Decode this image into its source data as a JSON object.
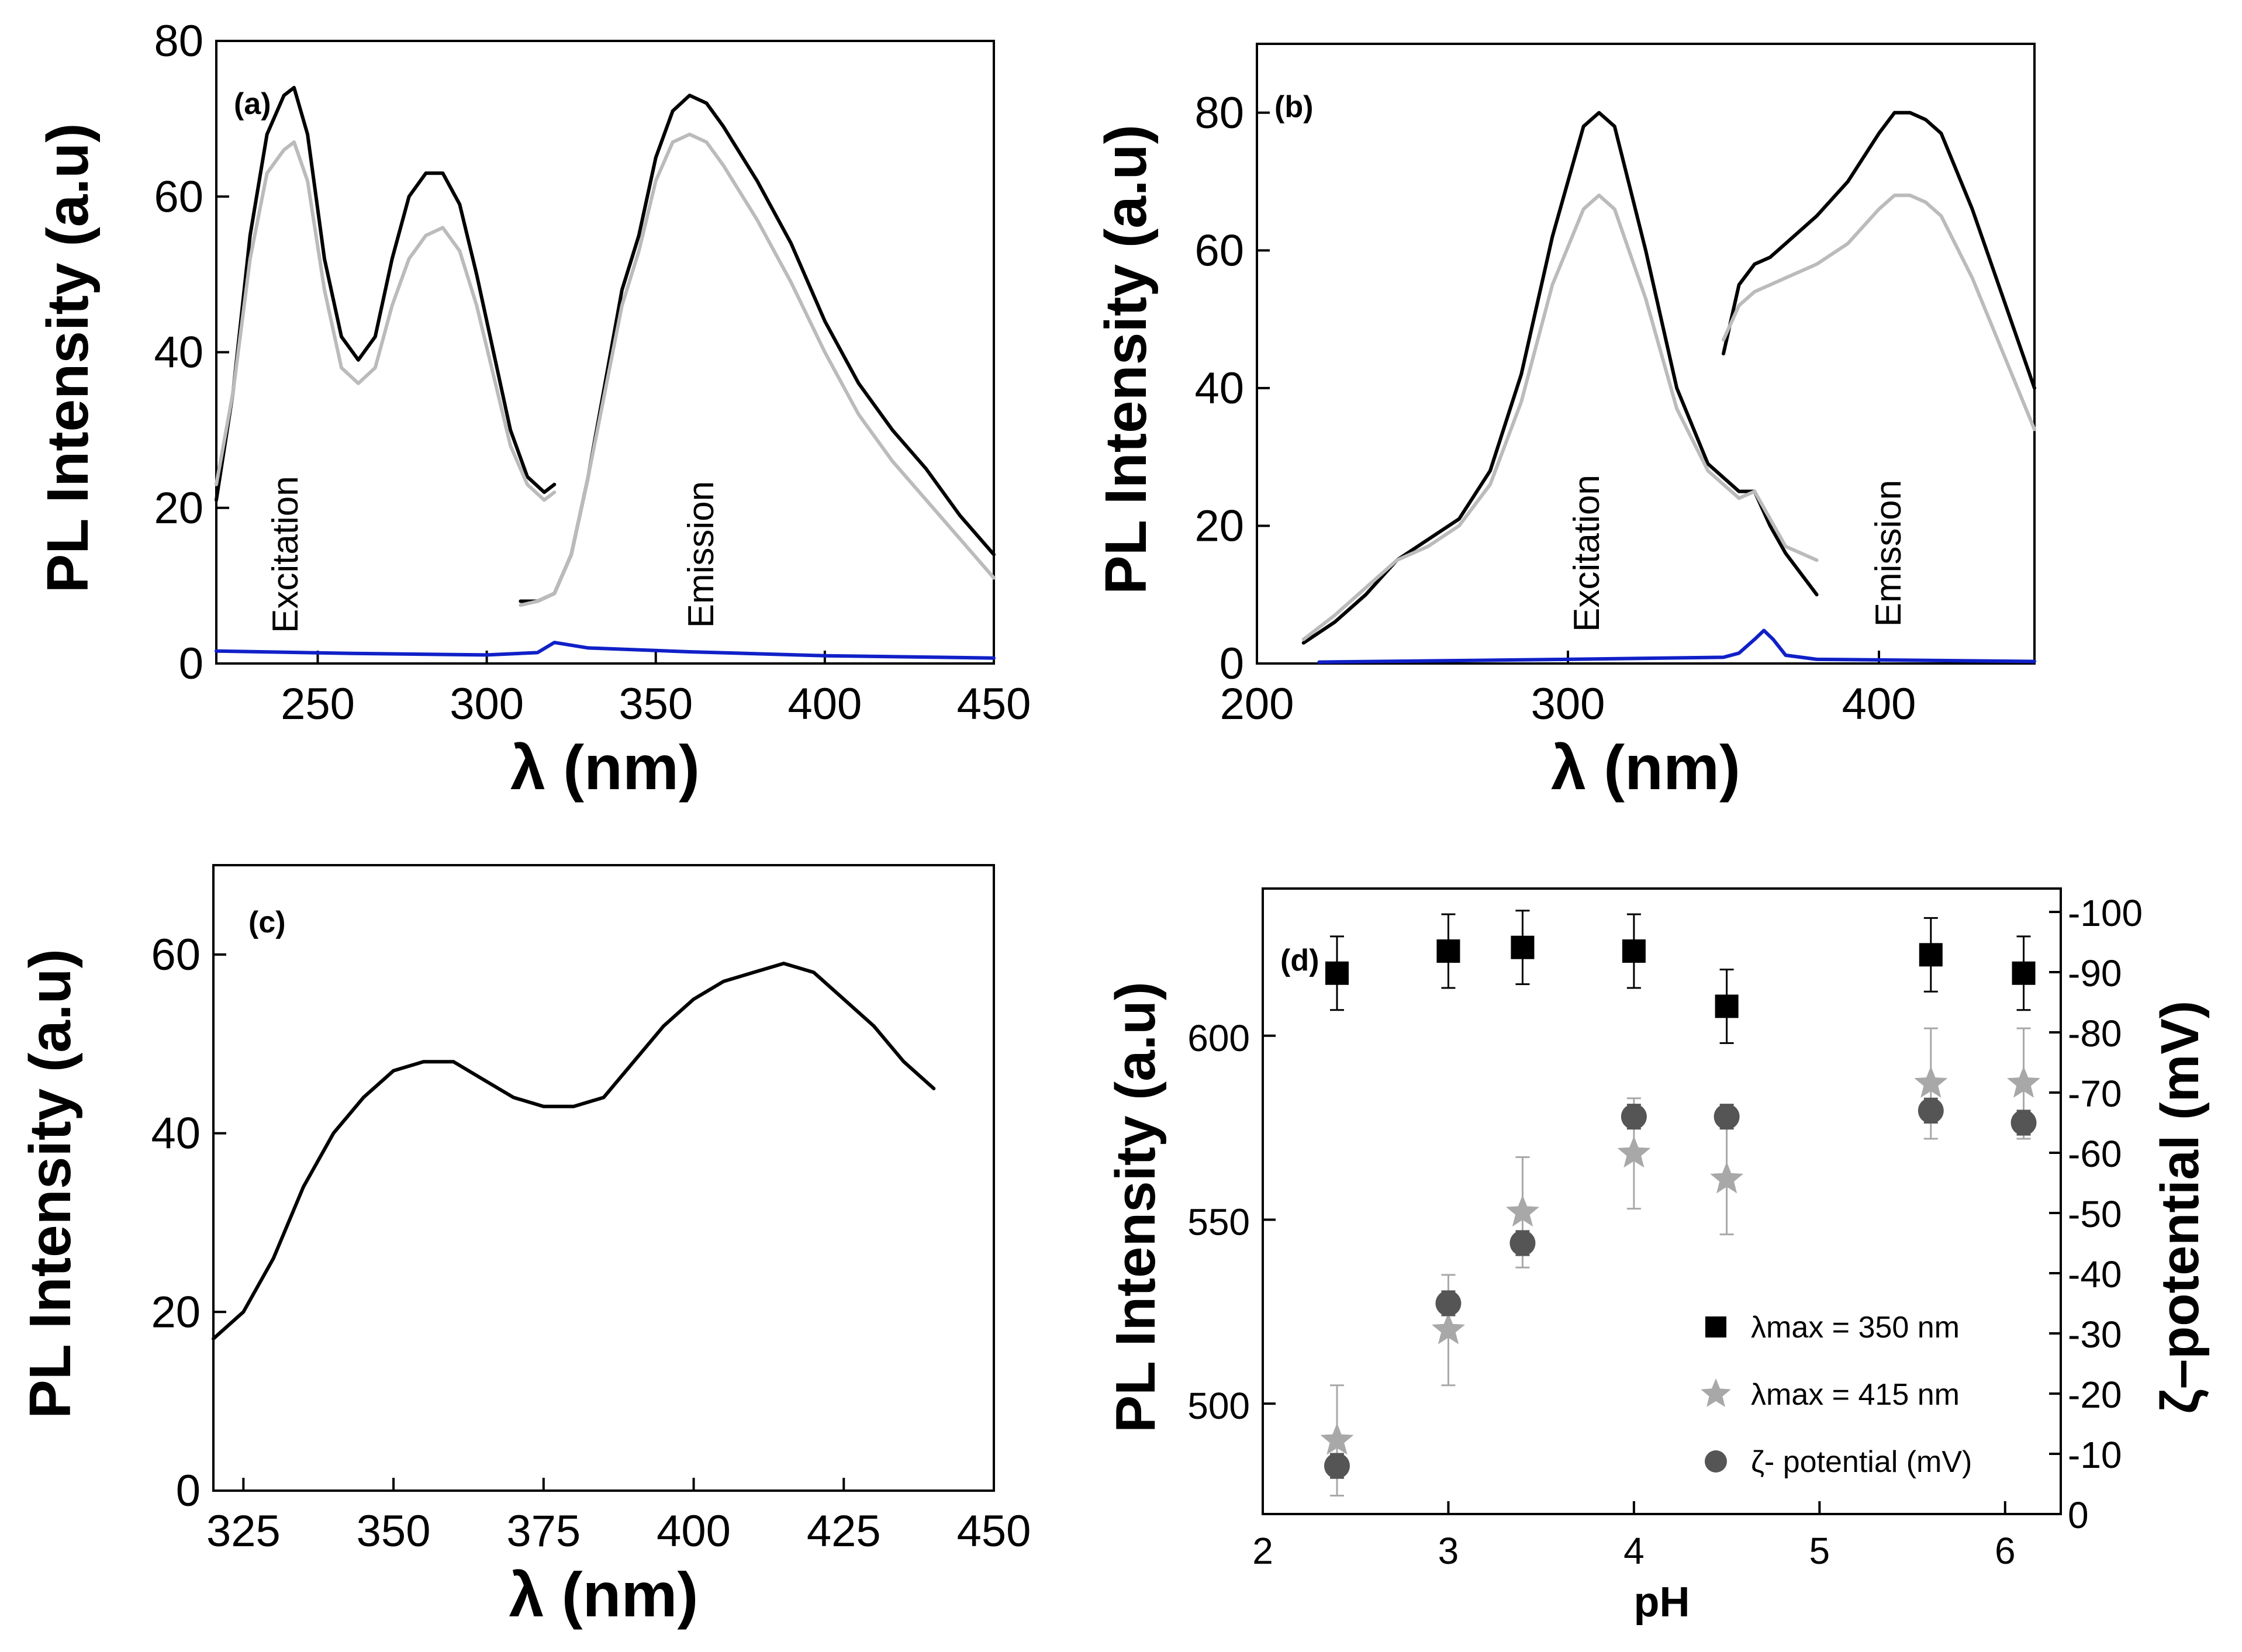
{
  "chart_data": [
    {
      "panel": "a",
      "type": "line",
      "label": "(a)",
      "xlabel": "λ (nm)",
      "ylabel": "PL Intensity (a.u)",
      "xlim": [
        220,
        450
      ],
      "ylim": [
        0,
        80
      ],
      "xticks": [
        250,
        300,
        350,
        400,
        450
      ],
      "yticks": [
        0,
        20,
        40,
        60,
        80
      ],
      "annotations": [
        "Excitation",
        "Emission"
      ],
      "series": [
        {
          "name": "excitation-black",
          "color": "#000000",
          "x": [
            220,
            225,
            230,
            235,
            240,
            243,
            247,
            252,
            257,
            262,
            267,
            272,
            277,
            282,
            287,
            292,
            297,
            302,
            307,
            312,
            317,
            320
          ],
          "y": [
            21,
            35,
            55,
            68,
            73,
            74,
            68,
            52,
            42,
            39,
            42,
            52,
            60,
            63,
            63,
            59,
            50,
            40,
            30,
            24,
            22,
            23
          ]
        },
        {
          "name": "excitation-gray",
          "color": "#bbbbbb",
          "x": [
            220,
            225,
            230,
            235,
            240,
            243,
            247,
            252,
            257,
            262,
            267,
            272,
            277,
            282,
            287,
            292,
            297,
            302,
            307,
            312,
            317,
            320
          ],
          "y": [
            23,
            35,
            52,
            63,
            66,
            67,
            62,
            48,
            38,
            36,
            38,
            46,
            52,
            55,
            56,
            53,
            46,
            37,
            28,
            23,
            21,
            22
          ]
        },
        {
          "name": "emission-black",
          "color": "#000000",
          "x": [
            310,
            315,
            320,
            325,
            330,
            335,
            340,
            345,
            350,
            355,
            360,
            365,
            370,
            380,
            390,
            400,
            410,
            420,
            430,
            440,
            450
          ],
          "y": [
            8,
            8,
            9,
            14,
            24,
            36,
            48,
            55,
            65,
            71,
            73,
            72,
            69,
            62,
            54,
            44,
            36,
            30,
            25,
            19,
            14
          ]
        },
        {
          "name": "emission-gray",
          "color": "#bbbbbb",
          "x": [
            310,
            315,
            320,
            325,
            330,
            335,
            340,
            345,
            350,
            355,
            360,
            365,
            370,
            380,
            390,
            400,
            410,
            420,
            430,
            440,
            450
          ],
          "y": [
            7.5,
            8,
            9,
            14,
            24,
            35,
            46,
            53,
            62,
            67,
            68,
            67,
            64,
            57,
            49,
            40,
            32,
            26,
            21,
            16,
            11
          ]
        },
        {
          "name": "baseline-blue",
          "color": "#1020c8",
          "x": [
            220,
            260,
            300,
            315,
            320,
            330,
            360,
            400,
            450
          ],
          "y": [
            1.6,
            1.3,
            1.1,
            1.4,
            2.7,
            2.0,
            1.5,
            1.0,
            0.7
          ]
        }
      ]
    },
    {
      "panel": "b",
      "type": "line",
      "label": "(b)",
      "xlabel": "λ (nm)",
      "ylabel": "PL Intensity (a.u)",
      "xlim": [
        200,
        450
      ],
      "ylim": [
        0,
        90
      ],
      "xticks": [
        200,
        300,
        400
      ],
      "yticks": [
        0,
        20,
        40,
        60,
        80
      ],
      "annotations": [
        "Excitation",
        "Emission"
      ],
      "series": [
        {
          "name": "excitation-black",
          "color": "#000000",
          "x": [
            215,
            225,
            235,
            245,
            255,
            265,
            275,
            285,
            295,
            305,
            310,
            315,
            325,
            335,
            345,
            355,
            360,
            365,
            370,
            380
          ],
          "y": [
            3,
            6,
            10,
            15,
            18,
            21,
            28,
            42,
            62,
            78,
            80,
            78,
            60,
            40,
            29,
            25,
            25,
            20,
            16,
            10
          ]
        },
        {
          "name": "excitation-gray",
          "color": "#bbbbbb",
          "x": [
            215,
            225,
            235,
            245,
            255,
            265,
            275,
            285,
            295,
            305,
            310,
            315,
            325,
            335,
            345,
            355,
            360,
            365,
            370,
            380
          ],
          "y": [
            3.5,
            7,
            11,
            15,
            17,
            20,
            26,
            38,
            55,
            66,
            68,
            66,
            53,
            37,
            28,
            24,
            25,
            21,
            17,
            15
          ]
        },
        {
          "name": "emission-black",
          "color": "#000000",
          "x": [
            350,
            355,
            360,
            365,
            370,
            380,
            390,
            400,
            405,
            410,
            415,
            420,
            430,
            440,
            450
          ],
          "y": [
            45,
            55,
            58,
            59,
            61,
            65,
            70,
            77,
            80,
            80,
            79,
            77,
            66,
            53,
            40
          ]
        },
        {
          "name": "emission-gray",
          "color": "#bbbbbb",
          "x": [
            350,
            355,
            360,
            365,
            370,
            380,
            390,
            400,
            405,
            410,
            415,
            420,
            430,
            440,
            450
          ],
          "y": [
            47,
            52,
            54,
            55,
            56,
            58,
            61,
            66,
            68,
            68,
            67,
            65,
            56,
            45,
            34
          ]
        },
        {
          "name": "baseline-blue",
          "color": "#1020c8",
          "x": [
            220,
            260,
            300,
            350,
            355,
            360,
            363,
            366,
            370,
            380,
            450
          ],
          "y": [
            0.2,
            0.4,
            0.6,
            0.9,
            1.5,
            3.5,
            4.8,
            3.5,
            1.2,
            0.6,
            0.3
          ]
        }
      ]
    },
    {
      "panel": "c",
      "type": "line",
      "label": "(c)",
      "xlabel": "λ (nm)",
      "ylabel": "PL Intensity (a.u)",
      "xlim": [
        320,
        450
      ],
      "ylim": [
        0,
        70
      ],
      "xticks": [
        325,
        350,
        375,
        400,
        425,
        450
      ],
      "yticks": [
        0,
        20,
        40,
        60
      ],
      "series": [
        {
          "name": "emission",
          "color": "#000000",
          "x": [
            320,
            325,
            330,
            335,
            340,
            345,
            350,
            355,
            360,
            365,
            370,
            375,
            380,
            385,
            390,
            395,
            400,
            405,
            410,
            415,
            420,
            425,
            430,
            435,
            440
          ],
          "y": [
            17,
            20,
            26,
            34,
            40,
            44,
            47,
            48,
            48,
            46,
            44,
            43,
            43,
            44,
            48,
            52,
            55,
            57,
            58,
            59,
            58,
            55,
            52,
            48,
            45
          ]
        }
      ]
    },
    {
      "panel": "d",
      "type": "scatter",
      "label": "(d)",
      "xlabel": "pH",
      "ylabel": "PL Intensity (a.u)",
      "ylabel_right": "ζ–potential (mV)",
      "xlim": [
        2,
        6.3
      ],
      "ylim": [
        470,
        640
      ],
      "ylim_right": [
        0,
        -100
      ],
      "xticks": [
        2,
        3,
        4,
        5,
        6
      ],
      "yticks": [
        500,
        550,
        600
      ],
      "yticks_right": [
        0,
        -10,
        -20,
        -30,
        -40,
        -50,
        -60,
        -70,
        -80,
        -90,
        -100
      ],
      "legend_position": "bottom-right",
      "legend": [
        "λmax = 350 nm",
        "λmax = 415 nm",
        "ζ- potential (mV)"
      ],
      "series": [
        {
          "name": "λmax = 350 nm",
          "marker": "square",
          "color": "#000000",
          "axis": "left",
          "x": [
            2.4,
            3.0,
            3.4,
            4.0,
            4.5,
            5.6,
            6.1
          ],
          "y": [
            617,
            623,
            624,
            623,
            608,
            622,
            617
          ],
          "err": [
            10,
            10,
            10,
            10,
            10,
            10,
            10
          ]
        },
        {
          "name": "λmax = 415 nm",
          "marker": "star",
          "color": "#a8a8a8",
          "axis": "left",
          "x": [
            2.4,
            3.0,
            3.4,
            4.0,
            4.5,
            5.6,
            6.1
          ],
          "y": [
            490,
            520,
            552,
            568,
            561,
            587,
            587
          ],
          "err": [
            15,
            15,
            15,
            15,
            15,
            15,
            15
          ]
        },
        {
          "name": "ζ- potential (mV)",
          "marker": "circle",
          "color": "#555555",
          "axis": "right",
          "x": [
            2.4,
            3.0,
            3.4,
            4.0,
            4.5,
            5.6,
            6.1
          ],
          "y": [
            -8,
            -35,
            -45,
            -66,
            -66,
            -67,
            -65
          ],
          "err": [
            2,
            2,
            2,
            2,
            2,
            2,
            2
          ]
        }
      ]
    }
  ]
}
